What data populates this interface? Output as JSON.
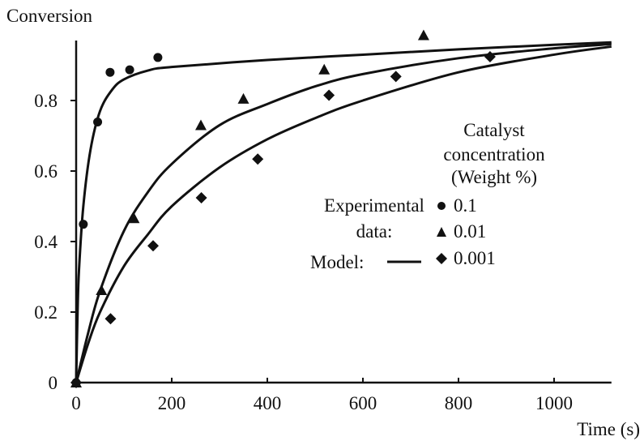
{
  "chart_data": {
    "type": "scatter",
    "ylabel": "Conversion",
    "xlabel": "Time (s)",
    "xlim": [
      0,
      1120
    ],
    "ylim": [
      0,
      0.97
    ],
    "xticks": [
      0,
      200,
      400,
      600,
      800,
      1000
    ],
    "xtick_labels": [
      "0",
      "200",
      "400",
      "600",
      "800",
      "1000"
    ],
    "yticks": [
      0,
      0.2,
      0.4,
      0.6,
      0.8
    ],
    "ytick_labels": [
      "0",
      "0.2",
      "0.4",
      "0.6",
      "0.8"
    ],
    "grid": false,
    "legend": {
      "placement": "right",
      "title_lines": [
        "Catalyst",
        "concentration",
        "(Weight %)"
      ],
      "experimental_label_lines": [
        "Experimental",
        "data:"
      ],
      "model_label": "Model:"
    },
    "series": [
      {
        "name": "0.1",
        "marker": "circle",
        "points": [
          [
            0,
            0
          ],
          [
            15,
            0.449
          ],
          [
            45,
            0.739
          ],
          [
            71,
            0.88
          ],
          [
            112,
            0.887
          ],
          [
            171,
            0.922
          ]
        ],
        "model": [
          [
            0,
            0
          ],
          [
            3,
            0.2
          ],
          [
            6,
            0.32
          ],
          [
            15,
            0.5
          ],
          [
            30,
            0.66
          ],
          [
            50,
            0.77
          ],
          [
            75,
            0.83
          ],
          [
            100,
            0.86
          ],
          [
            150,
            0.885
          ],
          [
            200,
            0.895
          ],
          [
            400,
            0.915
          ],
          [
            600,
            0.93
          ],
          [
            800,
            0.945
          ],
          [
            1000,
            0.958
          ],
          [
            1120,
            0.965
          ]
        ]
      },
      {
        "name": "0.01",
        "marker": "triangle",
        "points": [
          [
            0,
            0
          ],
          [
            53,
            0.262
          ],
          [
            121,
            0.466
          ],
          [
            261,
            0.73
          ],
          [
            350,
            0.805
          ],
          [
            519,
            0.888
          ],
          [
            727,
            0.985
          ]
        ],
        "model": [
          [
            0,
            0
          ],
          [
            25,
            0.14
          ],
          [
            50,
            0.26
          ],
          [
            100,
            0.43
          ],
          [
            150,
            0.54
          ],
          [
            200,
            0.62
          ],
          [
            300,
            0.73
          ],
          [
            400,
            0.79
          ],
          [
            500,
            0.84
          ],
          [
            600,
            0.875
          ],
          [
            800,
            0.92
          ],
          [
            1000,
            0.948
          ],
          [
            1120,
            0.96
          ]
        ]
      },
      {
        "name": "0.001",
        "marker": "diamond",
        "points": [
          [
            0,
            0
          ],
          [
            72,
            0.181
          ],
          [
            161,
            0.388
          ],
          [
            262,
            0.524
          ],
          [
            380,
            0.634
          ],
          [
            529,
            0.815
          ],
          [
            669,
            0.868
          ],
          [
            866,
            0.924
          ]
        ],
        "model": [
          [
            0,
            0
          ],
          [
            25,
            0.11
          ],
          [
            50,
            0.2
          ],
          [
            100,
            0.33
          ],
          [
            150,
            0.42
          ],
          [
            200,
            0.5
          ],
          [
            300,
            0.61
          ],
          [
            400,
            0.69
          ],
          [
            500,
            0.75
          ],
          [
            600,
            0.8
          ],
          [
            800,
            0.88
          ],
          [
            1000,
            0.93
          ],
          [
            1120,
            0.953
          ]
        ]
      }
    ]
  }
}
